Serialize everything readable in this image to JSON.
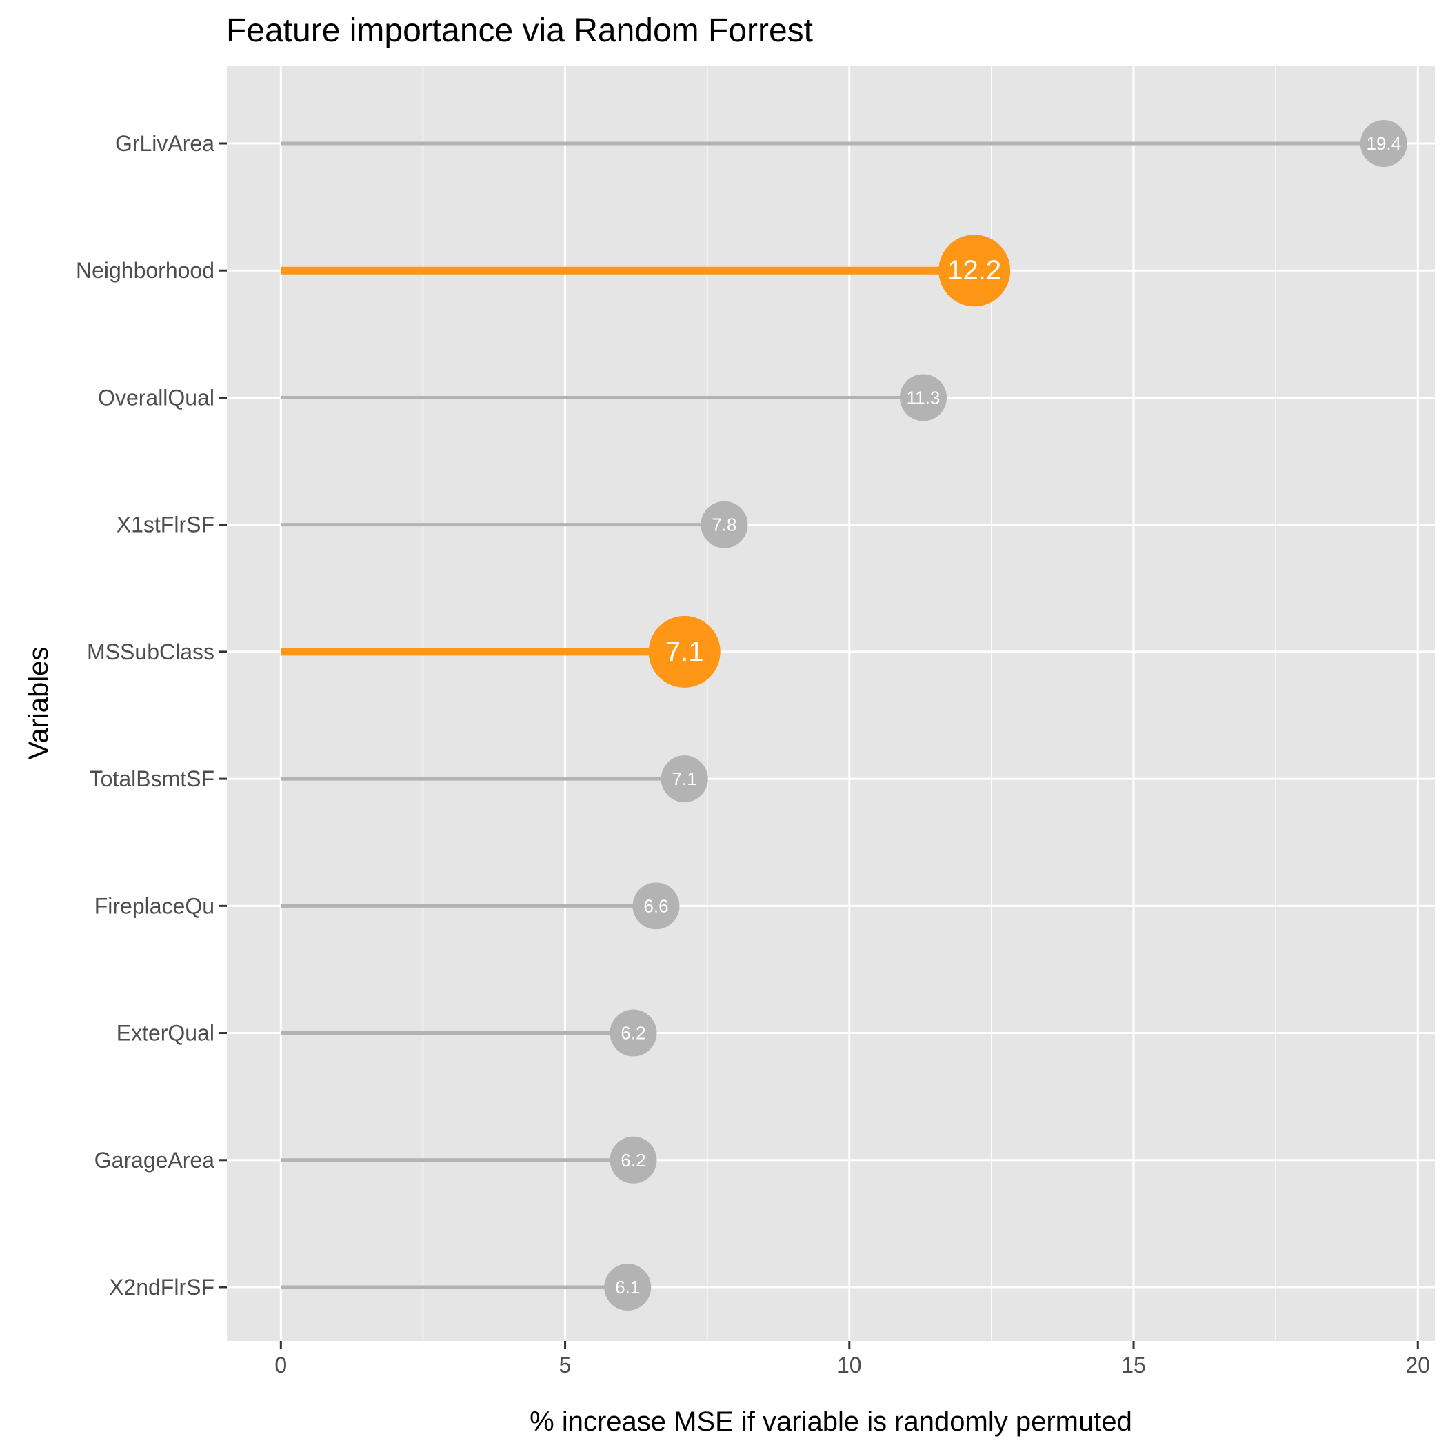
{
  "chart_data": {
    "type": "lollipop",
    "title": "Feature importance via Random Forrest",
    "xlabel": "% increase MSE if variable is randomly permuted",
    "ylabel": "Variables",
    "xlim": [
      -0.95,
      20.3
    ],
    "xticks": [
      0,
      5,
      10,
      15,
      20
    ],
    "grid": true,
    "legend": "none",
    "categories": [
      "GrLivArea",
      "Neighborhood",
      "OverallQual",
      "X1stFlrSF",
      "MSSubClass",
      "TotalBsmtSF",
      "FireplaceQu",
      "ExterQual",
      "GarageArea",
      "X2ndFlrSF"
    ],
    "values": [
      19.4,
      12.2,
      11.3,
      7.8,
      7.1,
      7.1,
      6.6,
      6.2,
      6.2,
      6.1
    ],
    "value_labels": [
      "19.4",
      "12.2",
      "11.3",
      "7.8",
      "7.1",
      "7.1",
      "6.6",
      "6.2",
      "6.2",
      "6.1"
    ],
    "highlighted": [
      false,
      true,
      false,
      false,
      true,
      false,
      false,
      false,
      false,
      false
    ],
    "colors": {
      "highlight": "#FF9615",
      "default": "#B3B3B3",
      "panel_background": "#E5E5E5",
      "grid": "#FFFFFF",
      "text": "#4D4D4D",
      "title": "#000000",
      "label_text": "#FFFFFF"
    }
  }
}
